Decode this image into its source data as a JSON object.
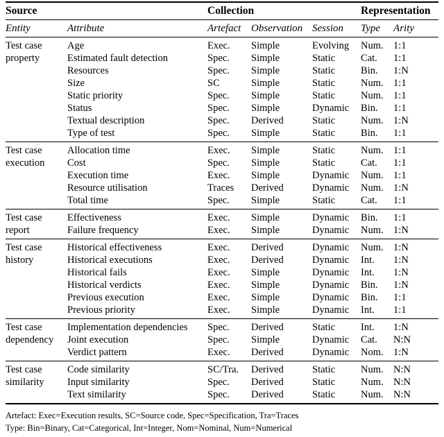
{
  "table": {
    "group_headers": [
      "Source",
      "Collection",
      "Representation"
    ],
    "column_headers": [
      "Entity",
      "Attribute",
      "Artefact",
      "Observation",
      "Session",
      "Type",
      "Arity"
    ]
  },
  "sections": [
    {
      "entity_lines": [
        "Test case",
        "property"
      ],
      "rows": [
        [
          "Age",
          "Exec.",
          "Simple",
          "Evolving",
          "Num.",
          "1:1"
        ],
        [
          "Estimated fault detection",
          "Spec.",
          "Simple",
          "Static",
          "Cat.",
          "1:1"
        ],
        [
          "Resources",
          "Spec.",
          "Simple",
          "Static",
          "Bin.",
          "1:N"
        ],
        [
          "Size",
          "SC",
          "Simple",
          "Static",
          "Num.",
          "1:1"
        ],
        [
          "Static priority",
          "Spec.",
          "Simple",
          "Static",
          "Num.",
          "1:1"
        ],
        [
          "Status",
          "Spec.",
          "Simple",
          "Dynamic",
          "Bin.",
          "1:1"
        ],
        [
          "Textual description",
          "Spec.",
          "Derived",
          "Static",
          "Num.",
          "1:N"
        ],
        [
          "Type of test",
          "Spec.",
          "Simple",
          "Static",
          "Bin.",
          "1:1"
        ]
      ]
    },
    {
      "entity_lines": [
        "Test case",
        "execution"
      ],
      "rows": [
        [
          "Allocation time",
          "Exec.",
          "Simple",
          "Static",
          "Num.",
          "1:1"
        ],
        [
          "Cost",
          "Spec.",
          "Simple",
          "Static",
          "Cat.",
          "1:1"
        ],
        [
          "Execution time",
          "Exec.",
          "Simple",
          "Dynamic",
          "Num.",
          "1:1"
        ],
        [
          "Resource utilisation",
          "Traces",
          "Derived",
          "Dynamic",
          "Num.",
          "1:N"
        ],
        [
          "Total time",
          "Spec.",
          "Simple",
          "Static",
          "Cat.",
          "1:1"
        ]
      ]
    },
    {
      "entity_lines": [
        "Test case",
        "report"
      ],
      "rows": [
        [
          "Effectiveness",
          "Exec.",
          "Simple",
          "Dynamic",
          "Bin.",
          "1:1"
        ],
        [
          "Failure frequency",
          "Exec.",
          "Simple",
          "Dynamic",
          "Num.",
          "1:N"
        ]
      ]
    },
    {
      "entity_lines": [
        "Test case",
        "history"
      ],
      "rows": [
        [
          "Historical effectiveness",
          "Exec.",
          "Derived",
          "Dynamic",
          "Num.",
          "1:N"
        ],
        [
          "Historical executions",
          "Exec.",
          "Derived",
          "Dynamic",
          "Int.",
          "1:N"
        ],
        [
          "Historical fails",
          "Exec.",
          "Simple",
          "Dynamic",
          "Int.",
          "1:N"
        ],
        [
          "Historical verdicts",
          "Exec.",
          "Simple",
          "Dynamic",
          "Bin.",
          "1:N"
        ],
        [
          "Previous execution",
          "Exec.",
          "Simple",
          "Dynamic",
          "Bin.",
          "1:1"
        ],
        [
          "Previous priority",
          "Exec.",
          "Simple",
          "Dynamic",
          "Int.",
          "1:1"
        ]
      ]
    },
    {
      "entity_lines": [
        "Test case",
        "dependency"
      ],
      "rows": [
        [
          "Implementation dependencies",
          "Spec.",
          "Derived",
          "Static",
          "Int.",
          "1:N"
        ],
        [
          "Joint execution",
          "Spec.",
          "Simple",
          "Dynamic",
          "Cat.",
          "N:N"
        ],
        [
          "Verdict pattern",
          "Exec.",
          "Derived",
          "Dynamic",
          "Nom.",
          "1:N"
        ]
      ]
    },
    {
      "entity_lines": [
        "Test case",
        "similarity"
      ],
      "rows": [
        [
          "Code similarity",
          "SC/Tra.",
          "Derived",
          "Static",
          "Num.",
          "N:N"
        ],
        [
          "Input similarity",
          "Spec.",
          "Derived",
          "Static",
          "Num.",
          "N:N"
        ],
        [
          "Text similarity",
          "Spec.",
          "Derived",
          "Static",
          "Num.",
          "N:N"
        ]
      ]
    }
  ],
  "footnotes": [
    "Artefact: Exec=Execution results, SC=Source code, Spec=Specification, Tra=Traces",
    "Type: Bin=Binary, Cat=Categorical, Int=Integer, Nom=Nominal, Num=Numerical"
  ],
  "colors": {
    "text": "#000000",
    "background": "#ffffff",
    "rule": "#000000"
  }
}
